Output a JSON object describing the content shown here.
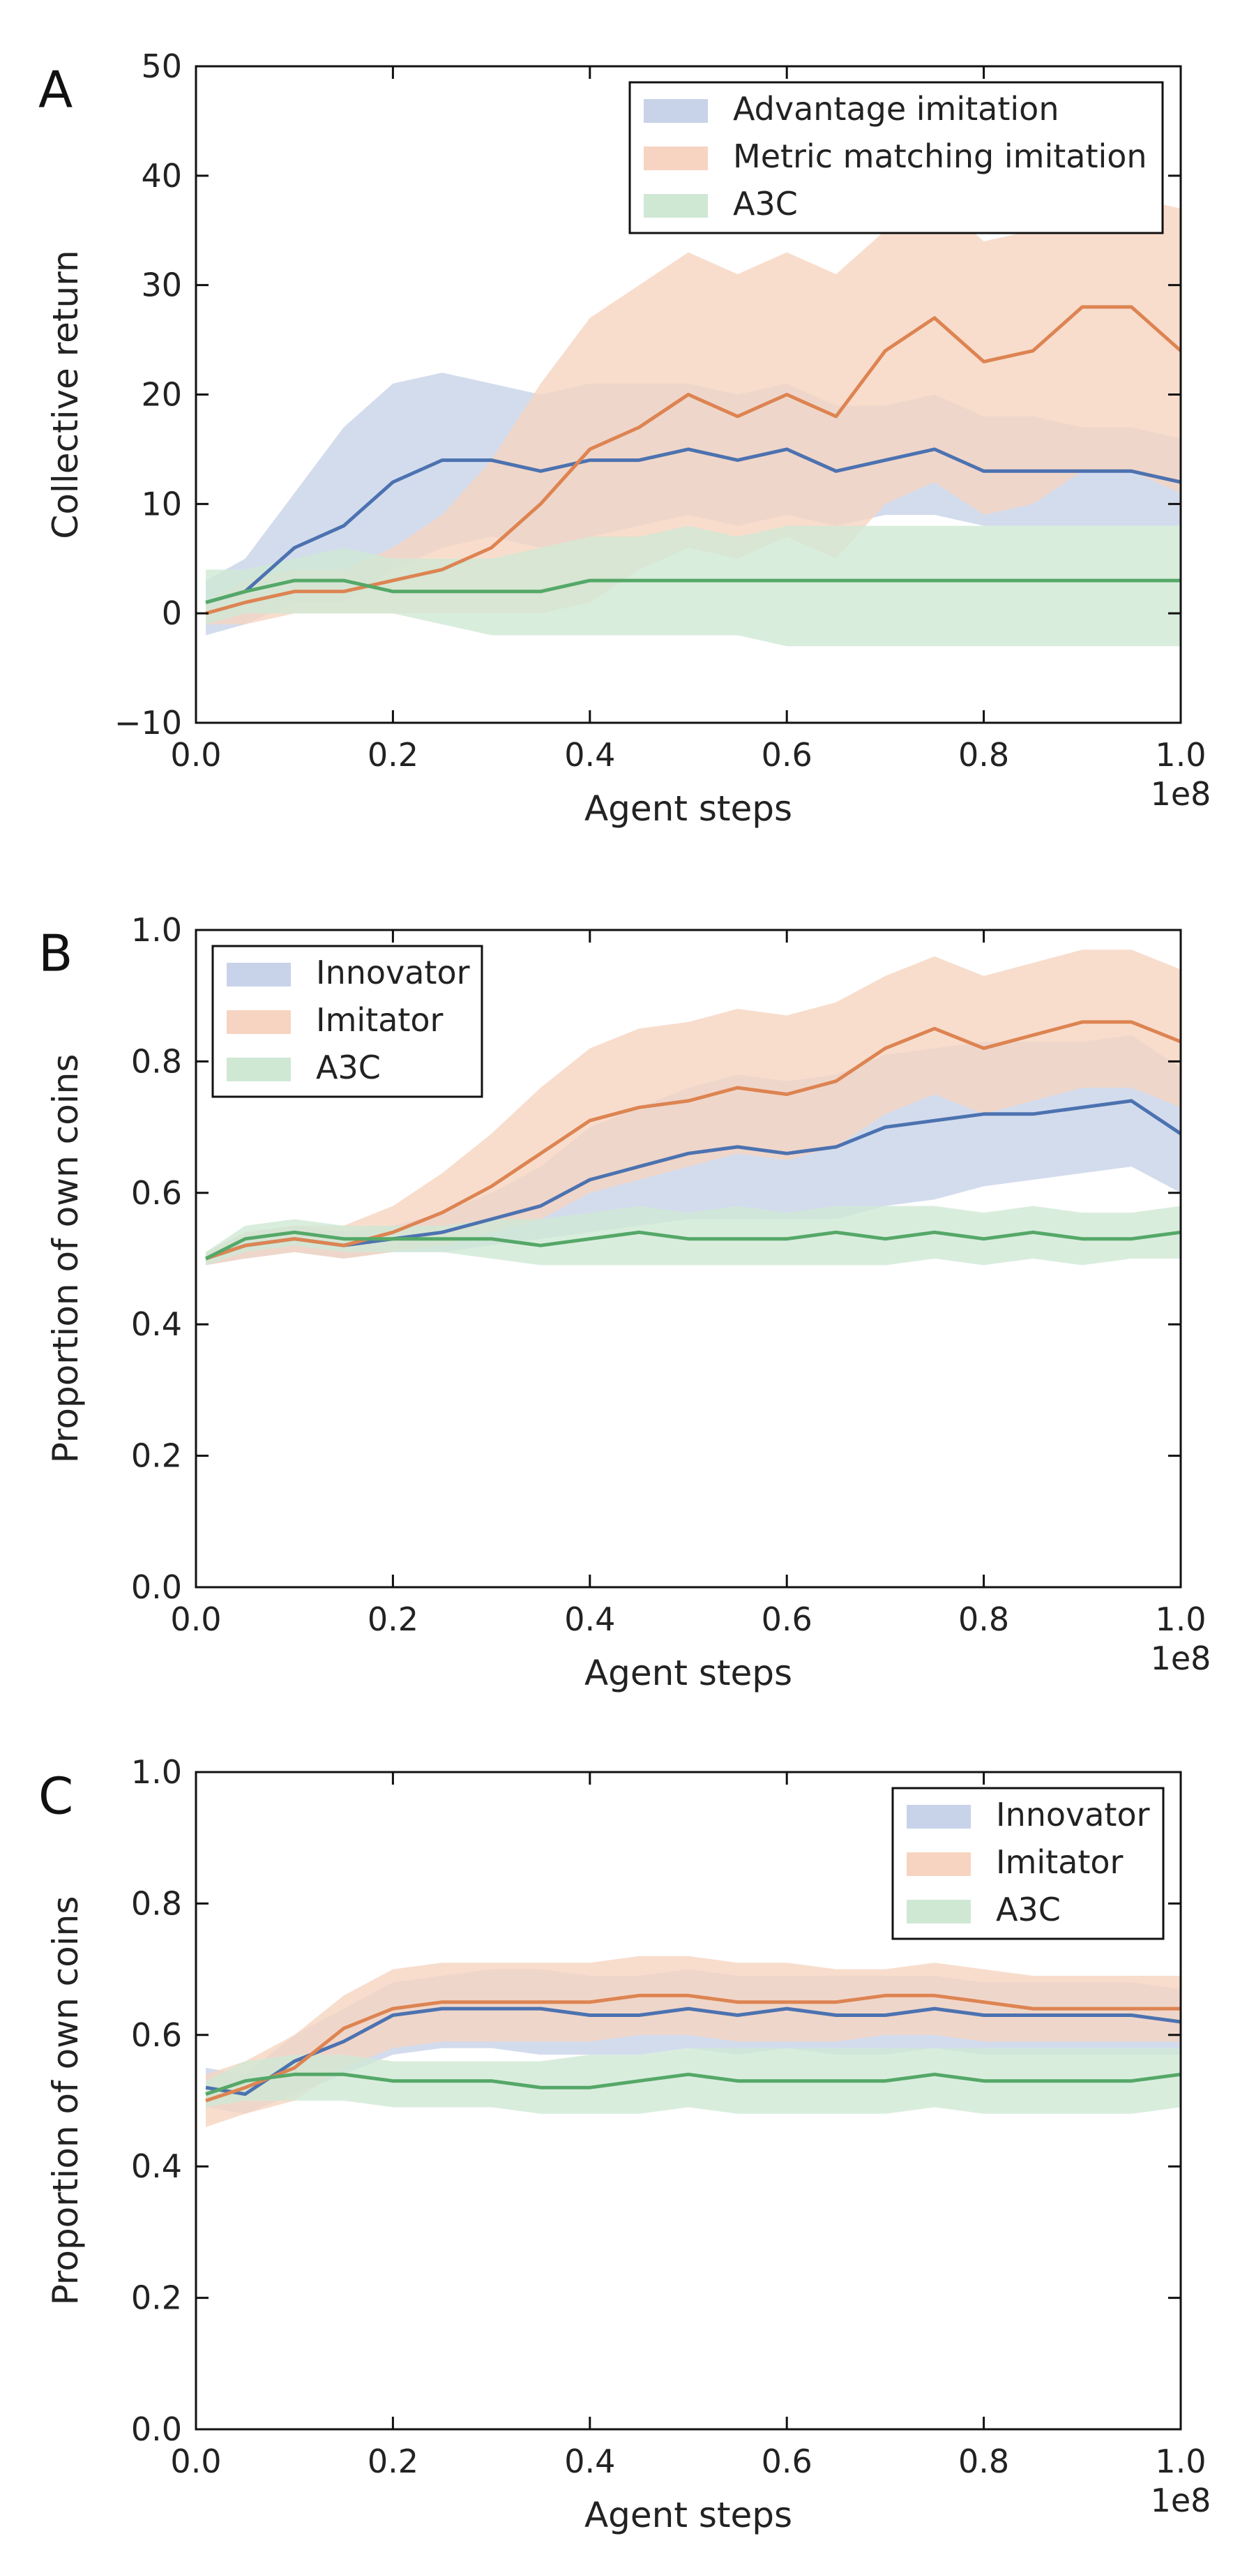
{
  "chart_data": [
    {
      "type": "line",
      "panel_label": "A",
      "xlabel": "Agent steps",
      "ylabel": "Collective return",
      "x_multiplier_label": "1e8",
      "xlim": [
        0,
        1.0
      ],
      "ylim": [
        -10,
        50
      ],
      "xticks": [
        0.0,
        0.2,
        0.4,
        0.6,
        0.8,
        1.0
      ],
      "xtick_labels": [
        "0.0",
        "0.2",
        "0.4",
        "0.6",
        "0.8",
        "1.0"
      ],
      "yticks": [
        -10,
        0,
        10,
        20,
        30,
        40,
        50
      ],
      "ytick_labels": [
        "−10",
        "0",
        "10",
        "20",
        "30",
        "40",
        "50"
      ],
      "legend_position": "top-right",
      "x": [
        0.01,
        0.05,
        0.1,
        0.15,
        0.2,
        0.25,
        0.3,
        0.35,
        0.4,
        0.45,
        0.5,
        0.55,
        0.6,
        0.65,
        0.7,
        0.75,
        0.8,
        0.85,
        0.9,
        0.95,
        1.0
      ],
      "series": [
        {
          "name": "Advantage imitation",
          "color": "#4c72b0",
          "band_color": "#c8d3e9",
          "values": [
            1,
            2,
            6,
            8,
            12,
            14,
            14,
            13,
            14,
            14,
            15,
            14,
            15,
            13,
            14,
            15,
            13,
            13,
            13,
            13,
            12
          ],
          "lower": [
            -2,
            -1,
            1,
            1,
            4,
            6,
            7,
            6,
            7,
            8,
            9,
            8,
            9,
            8,
            9,
            9,
            8,
            8,
            8,
            8,
            8
          ],
          "upper": [
            3,
            5,
            11,
            17,
            21,
            22,
            21,
            20,
            21,
            21,
            21,
            20,
            21,
            19,
            19,
            20,
            18,
            18,
            17,
            17,
            16
          ]
        },
        {
          "name": "Metric matching imitation",
          "color": "#dd8452",
          "band_color": "#f6d4c1",
          "values": [
            0,
            1,
            2,
            2,
            3,
            4,
            6,
            10,
            15,
            17,
            20,
            18,
            20,
            18,
            24,
            27,
            23,
            24,
            28,
            28,
            24
          ],
          "lower": [
            -1,
            -1,
            0,
            0,
            0,
            0,
            0,
            0,
            1,
            4,
            6,
            5,
            7,
            5,
            10,
            12,
            9,
            10,
            13,
            13,
            11
          ],
          "upper": [
            1,
            3,
            4,
            4,
            6,
            9,
            14,
            21,
            27,
            30,
            33,
            31,
            33,
            31,
            35,
            38,
            34,
            35,
            38,
            38,
            37
          ]
        },
        {
          "name": "A3C",
          "color": "#55a868",
          "band_color": "#cfe8d4",
          "values": [
            1,
            2,
            3,
            3,
            2,
            2,
            2,
            2,
            3,
            3,
            3,
            3,
            3,
            3,
            3,
            3,
            3,
            3,
            3,
            3,
            3
          ],
          "lower": [
            -1,
            0,
            0,
            0,
            0,
            -1,
            -2,
            -2,
            -2,
            -2,
            -2,
            -2,
            -3,
            -3,
            -3,
            -3,
            -3,
            -3,
            -3,
            -3,
            -3
          ],
          "upper": [
            4,
            4,
            5,
            6,
            5,
            5,
            5,
            6,
            7,
            7,
            8,
            7,
            8,
            8,
            8,
            8,
            8,
            8,
            8,
            8,
            8
          ]
        }
      ]
    },
    {
      "type": "line",
      "panel_label": "B",
      "xlabel": "Agent steps",
      "ylabel": "Proportion of own coins",
      "x_multiplier_label": "1e8",
      "xlim": [
        0,
        1.0
      ],
      "ylim": [
        0.0,
        1.0
      ],
      "xticks": [
        0.0,
        0.2,
        0.4,
        0.6,
        0.8,
        1.0
      ],
      "xtick_labels": [
        "0.0",
        "0.2",
        "0.4",
        "0.6",
        "0.8",
        "1.0"
      ],
      "yticks": [
        0.0,
        0.2,
        0.4,
        0.6,
        0.8,
        1.0
      ],
      "ytick_labels": [
        "0.0",
        "0.2",
        "0.4",
        "0.6",
        "0.8",
        "1.0"
      ],
      "legend_position": "top-left",
      "x": [
        0.01,
        0.05,
        0.1,
        0.15,
        0.2,
        0.25,
        0.3,
        0.35,
        0.4,
        0.45,
        0.5,
        0.55,
        0.6,
        0.65,
        0.7,
        0.75,
        0.8,
        0.85,
        0.9,
        0.95,
        1.0
      ],
      "series": [
        {
          "name": "Innovator",
          "color": "#4c72b0",
          "band_color": "#c8d3e9",
          "values": [
            0.5,
            0.52,
            0.53,
            0.52,
            0.53,
            0.54,
            0.56,
            0.58,
            0.62,
            0.64,
            0.66,
            0.67,
            0.66,
            0.67,
            0.7,
            0.71,
            0.72,
            0.72,
            0.73,
            0.74,
            0.69
          ],
          "lower": [
            0.49,
            0.5,
            0.51,
            0.5,
            0.51,
            0.51,
            0.52,
            0.53,
            0.54,
            0.55,
            0.56,
            0.56,
            0.56,
            0.56,
            0.58,
            0.59,
            0.61,
            0.62,
            0.63,
            0.64,
            0.6
          ],
          "upper": [
            0.51,
            0.54,
            0.55,
            0.54,
            0.55,
            0.57,
            0.6,
            0.64,
            0.7,
            0.73,
            0.76,
            0.78,
            0.77,
            0.78,
            0.81,
            0.82,
            0.83,
            0.83,
            0.83,
            0.84,
            0.79
          ]
        },
        {
          "name": "Imitator",
          "color": "#dd8452",
          "band_color": "#f6d4c1",
          "values": [
            0.5,
            0.52,
            0.53,
            0.52,
            0.54,
            0.57,
            0.61,
            0.66,
            0.71,
            0.73,
            0.74,
            0.76,
            0.75,
            0.77,
            0.82,
            0.85,
            0.82,
            0.84,
            0.86,
            0.86,
            0.83
          ],
          "lower": [
            0.49,
            0.5,
            0.51,
            0.5,
            0.51,
            0.52,
            0.54,
            0.56,
            0.6,
            0.62,
            0.64,
            0.66,
            0.65,
            0.67,
            0.72,
            0.75,
            0.72,
            0.74,
            0.76,
            0.76,
            0.73
          ],
          "upper": [
            0.51,
            0.54,
            0.55,
            0.55,
            0.58,
            0.63,
            0.69,
            0.76,
            0.82,
            0.85,
            0.86,
            0.88,
            0.87,
            0.89,
            0.93,
            0.96,
            0.93,
            0.95,
            0.97,
            0.97,
            0.94
          ]
        },
        {
          "name": "A3C",
          "color": "#55a868",
          "band_color": "#cfe8d4",
          "values": [
            0.5,
            0.53,
            0.54,
            0.53,
            0.53,
            0.53,
            0.53,
            0.52,
            0.53,
            0.54,
            0.53,
            0.53,
            0.53,
            0.54,
            0.53,
            0.54,
            0.53,
            0.54,
            0.53,
            0.53,
            0.54
          ],
          "lower": [
            0.49,
            0.51,
            0.52,
            0.51,
            0.51,
            0.51,
            0.5,
            0.49,
            0.49,
            0.49,
            0.49,
            0.49,
            0.49,
            0.49,
            0.49,
            0.5,
            0.49,
            0.5,
            0.49,
            0.5,
            0.5
          ],
          "upper": [
            0.51,
            0.55,
            0.56,
            0.55,
            0.55,
            0.55,
            0.56,
            0.56,
            0.57,
            0.58,
            0.57,
            0.58,
            0.57,
            0.58,
            0.58,
            0.58,
            0.57,
            0.58,
            0.57,
            0.57,
            0.58
          ]
        }
      ]
    },
    {
      "type": "line",
      "panel_label": "C",
      "xlabel": "Agent steps",
      "ylabel": "Proportion of own coins",
      "x_multiplier_label": "1e8",
      "xlim": [
        0,
        1.0
      ],
      "ylim": [
        0.0,
        1.0
      ],
      "xticks": [
        0.0,
        0.2,
        0.4,
        0.6,
        0.8,
        1.0
      ],
      "xtick_labels": [
        "0.0",
        "0.2",
        "0.4",
        "0.6",
        "0.8",
        "1.0"
      ],
      "yticks": [
        0.0,
        0.2,
        0.4,
        0.6,
        0.8,
        1.0
      ],
      "ytick_labels": [
        "0.0",
        "0.2",
        "0.4",
        "0.6",
        "0.8",
        "1.0"
      ],
      "legend_position": "top-right",
      "x": [
        0.01,
        0.05,
        0.1,
        0.15,
        0.2,
        0.25,
        0.3,
        0.35,
        0.4,
        0.45,
        0.5,
        0.55,
        0.6,
        0.65,
        0.7,
        0.75,
        0.8,
        0.85,
        0.9,
        0.95,
        1.0
      ],
      "series": [
        {
          "name": "Innovator",
          "color": "#4c72b0",
          "band_color": "#c8d3e9",
          "values": [
            0.52,
            0.51,
            0.56,
            0.59,
            0.63,
            0.64,
            0.64,
            0.64,
            0.63,
            0.63,
            0.64,
            0.63,
            0.64,
            0.63,
            0.63,
            0.64,
            0.63,
            0.63,
            0.63,
            0.63,
            0.62
          ],
          "lower": [
            0.49,
            0.48,
            0.51,
            0.54,
            0.57,
            0.58,
            0.58,
            0.57,
            0.57,
            0.57,
            0.58,
            0.57,
            0.58,
            0.57,
            0.57,
            0.58,
            0.57,
            0.57,
            0.57,
            0.57,
            0.57
          ],
          "upper": [
            0.55,
            0.54,
            0.6,
            0.64,
            0.68,
            0.69,
            0.7,
            0.7,
            0.69,
            0.69,
            0.7,
            0.69,
            0.69,
            0.69,
            0.69,
            0.69,
            0.68,
            0.68,
            0.68,
            0.68,
            0.67
          ]
        },
        {
          "name": "Imitator",
          "color": "#dd8452",
          "band_color": "#f6d4c1",
          "values": [
            0.5,
            0.52,
            0.55,
            0.61,
            0.64,
            0.65,
            0.65,
            0.65,
            0.65,
            0.66,
            0.66,
            0.65,
            0.65,
            0.65,
            0.66,
            0.66,
            0.65,
            0.64,
            0.64,
            0.64,
            0.64
          ],
          "lower": [
            0.46,
            0.48,
            0.5,
            0.55,
            0.58,
            0.59,
            0.59,
            0.59,
            0.59,
            0.6,
            0.6,
            0.59,
            0.59,
            0.59,
            0.6,
            0.6,
            0.59,
            0.59,
            0.59,
            0.59,
            0.59
          ],
          "upper": [
            0.54,
            0.56,
            0.6,
            0.66,
            0.7,
            0.71,
            0.71,
            0.71,
            0.71,
            0.72,
            0.72,
            0.71,
            0.71,
            0.7,
            0.7,
            0.71,
            0.7,
            0.69,
            0.69,
            0.69,
            0.69
          ]
        },
        {
          "name": "A3C",
          "color": "#55a868",
          "band_color": "#cfe8d4",
          "values": [
            0.51,
            0.53,
            0.54,
            0.54,
            0.53,
            0.53,
            0.53,
            0.52,
            0.52,
            0.53,
            0.54,
            0.53,
            0.53,
            0.53,
            0.53,
            0.54,
            0.53,
            0.53,
            0.53,
            0.53,
            0.54
          ],
          "lower": [
            0.49,
            0.5,
            0.5,
            0.5,
            0.49,
            0.49,
            0.49,
            0.48,
            0.48,
            0.48,
            0.49,
            0.48,
            0.48,
            0.48,
            0.48,
            0.49,
            0.48,
            0.48,
            0.48,
            0.48,
            0.49
          ],
          "upper": [
            0.53,
            0.56,
            0.57,
            0.57,
            0.56,
            0.56,
            0.56,
            0.56,
            0.57,
            0.57,
            0.58,
            0.58,
            0.58,
            0.58,
            0.58,
            0.58,
            0.58,
            0.58,
            0.58,
            0.58,
            0.58
          ]
        }
      ]
    }
  ]
}
